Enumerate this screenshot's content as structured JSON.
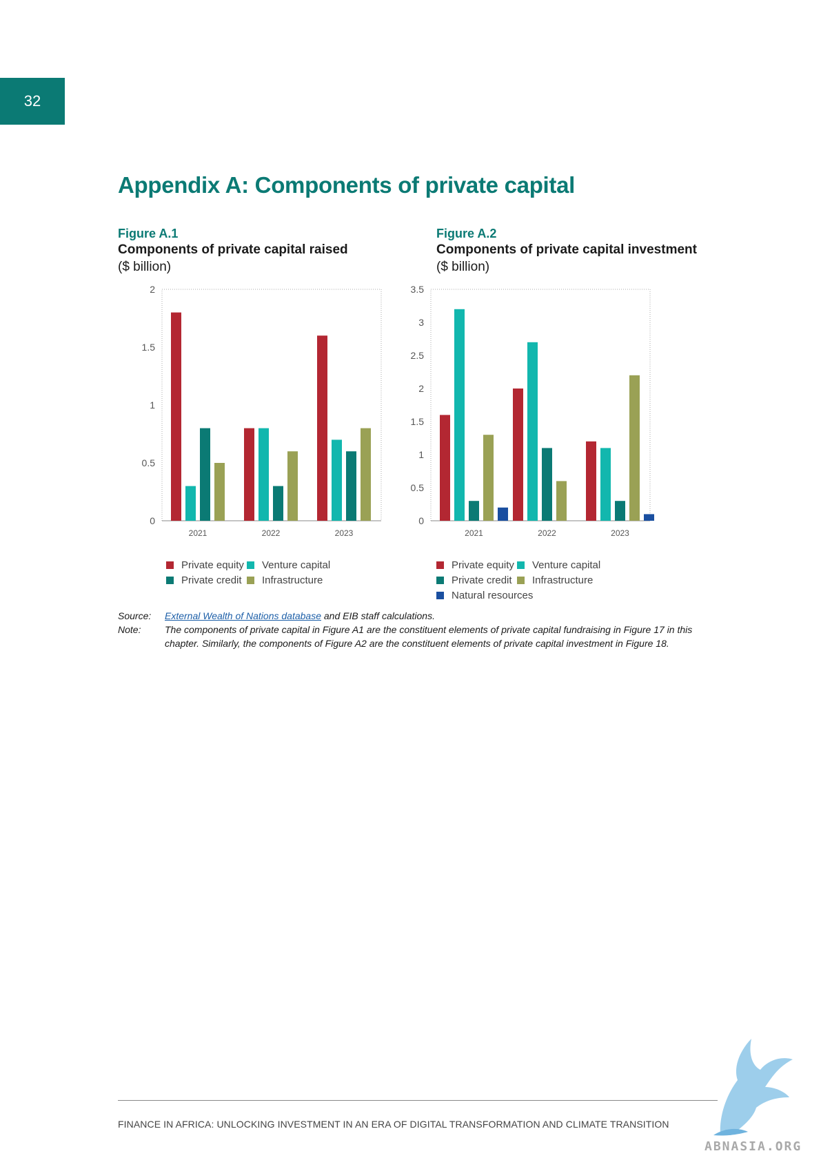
{
  "page_number": "32",
  "appendix_title": "Appendix A: Components of private capital",
  "colors": {
    "Private equity": "#b32732",
    "Venture capital": "#12b7ae",
    "Private credit": "#0b7a74",
    "Infrastructure": "#9aa155",
    "Natural resources": "#1a4fa0"
  },
  "figures": [
    {
      "label": "Figure A.1",
      "title": "Components of private capital raised",
      "unit": "($ billion)"
    },
    {
      "label": "Figure A.2",
      "title": "Components of private capital investment",
      "unit": "($ billion)"
    }
  ],
  "chart_data": [
    {
      "type": "bar",
      "title": "Components of private capital raised",
      "ylabel": "($ billion)",
      "categories": [
        "2021",
        "2022",
        "2023"
      ],
      "ylim": [
        0,
        2
      ],
      "yticks": [
        "0",
        "0.5",
        "1",
        "1.5",
        "2"
      ],
      "legend_position": "bottom",
      "series": [
        {
          "name": "Private equity",
          "values": [
            1.8,
            0.8,
            1.6
          ]
        },
        {
          "name": "Venture capital",
          "values": [
            0.3,
            0.8,
            0.7
          ]
        },
        {
          "name": "Private credit",
          "values": [
            0.8,
            0.3,
            0.6
          ]
        },
        {
          "name": "Infrastructure",
          "values": [
            0.5,
            0.6,
            0.8
          ]
        }
      ]
    },
    {
      "type": "bar",
      "title": "Components of private capital investment",
      "ylabel": "($ billion)",
      "categories": [
        "2021",
        "2022",
        "2023"
      ],
      "ylim": [
        0,
        3.5
      ],
      "yticks": [
        "0",
        "0.5",
        "1",
        "1.5",
        "2",
        "2.5",
        "3",
        "3.5"
      ],
      "legend_position": "bottom",
      "series": [
        {
          "name": "Private equity",
          "values": [
            1.6,
            2.0,
            1.2
          ]
        },
        {
          "name": "Venture capital",
          "values": [
            3.2,
            2.7,
            1.1
          ]
        },
        {
          "name": "Private credit",
          "values": [
            0.3,
            1.1,
            0.3
          ]
        },
        {
          "name": "Infrastructure",
          "values": [
            1.3,
            0.6,
            2.2
          ]
        },
        {
          "name": "Natural resources",
          "values": [
            0.2,
            0,
            0.1
          ]
        }
      ]
    }
  ],
  "notes": {
    "source_label": "Source:",
    "source_link": "External Wealth of Nations database",
    "source_rest": " and EIB staff calculations.",
    "note_label": "Note:",
    "note_text": "The components of private capital in Figure A1 are the constituent elements of private capital fundraising in Figure 17 in this chapter. Similarly, the components of Figure A2 are the constituent elements of private capital investment in Figure 18."
  },
  "footer": "FINANCE IN AFRICA: UNLOCKING INVESTMENT IN AN ERA OF DIGITAL TRANSFORMATION AND CLIMATE TRANSITION",
  "watermark": "ABNASIA.ORG"
}
